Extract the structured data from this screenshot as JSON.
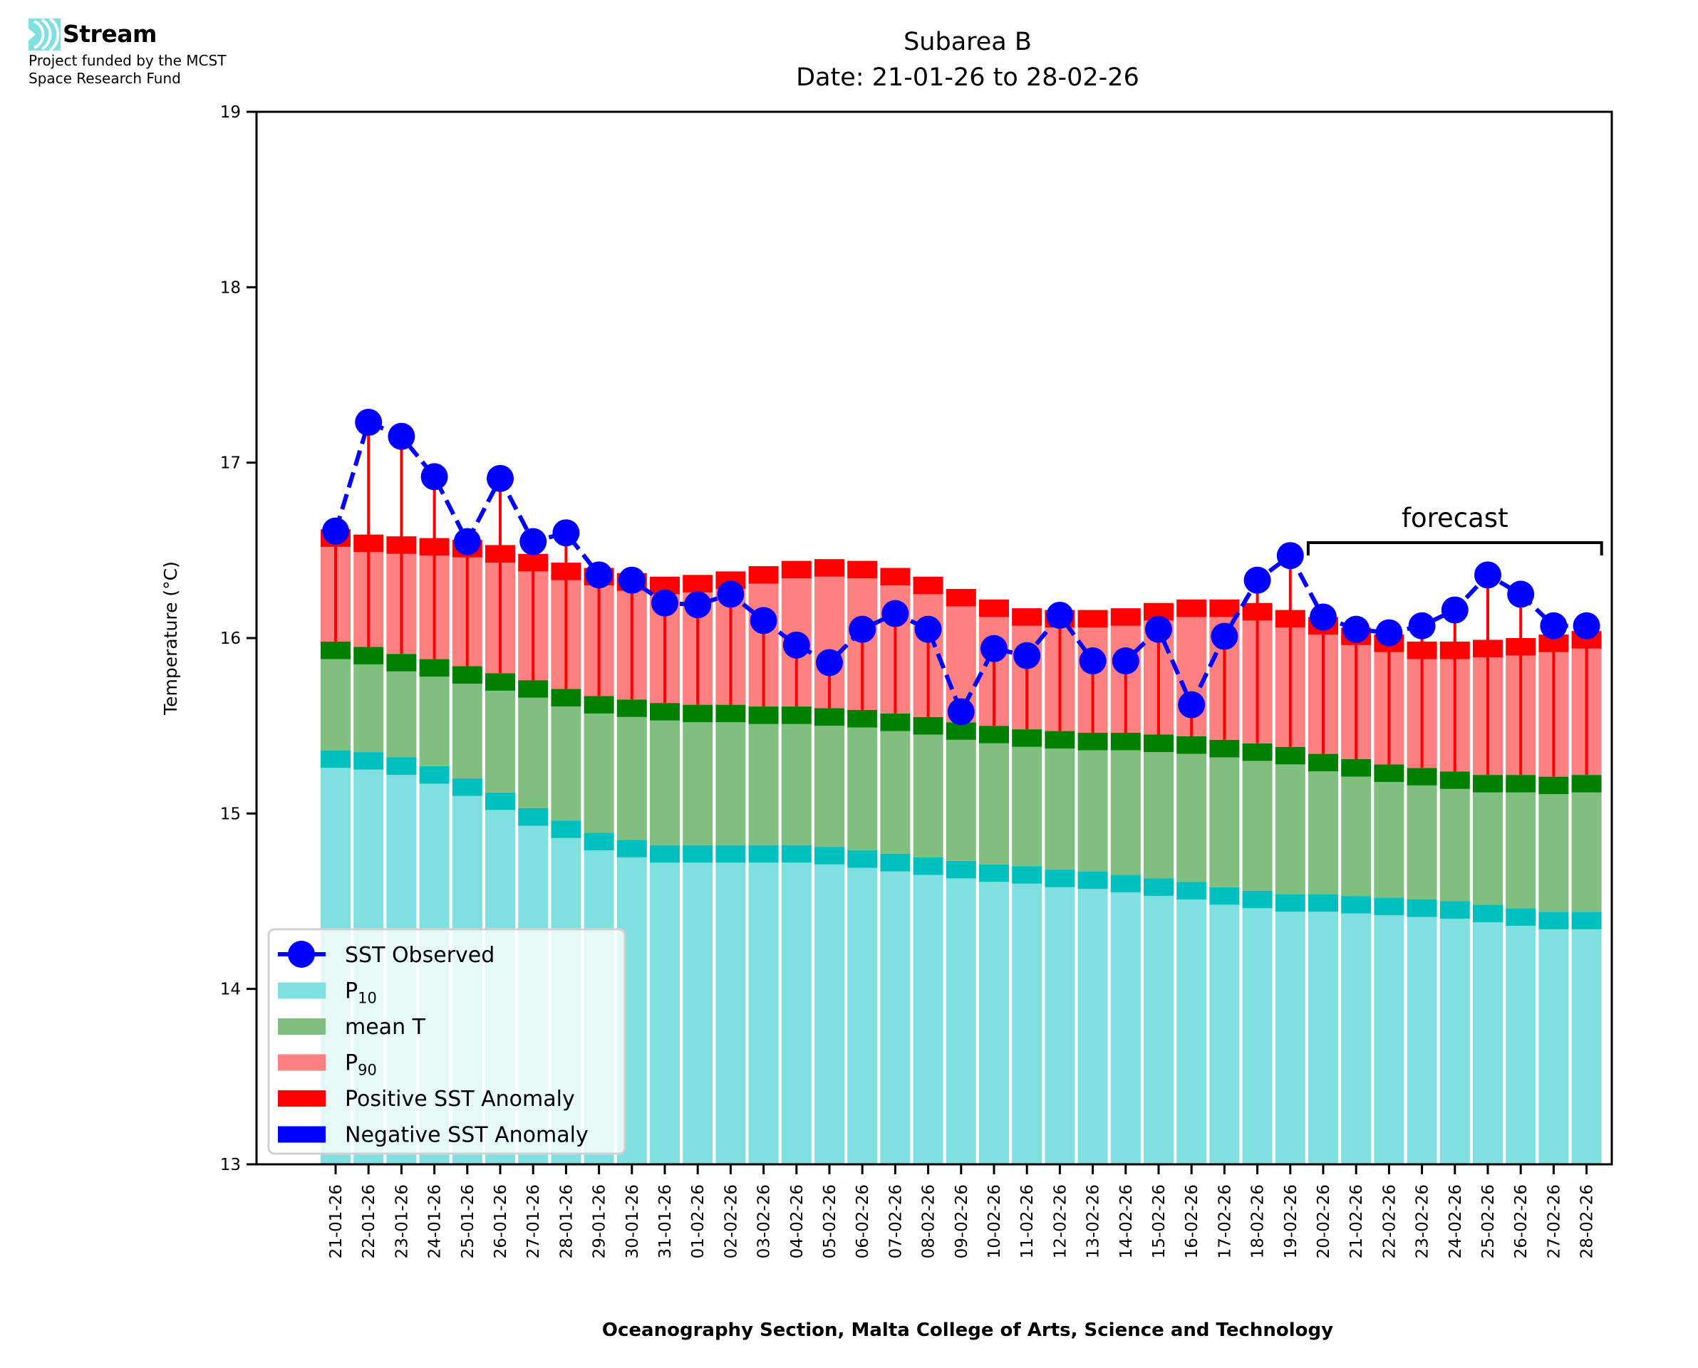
{
  "logo": {
    "name": "Stream",
    "subtitle_line1": "Project funded by the MCST",
    "subtitle_line2": "Space Research Fund",
    "icon": "stream-waves-icon"
  },
  "colors": {
    "p10": "#80dfdf",
    "p10_band": "#00bfbf",
    "mean": "#80bf80",
    "mean_band": "#008000",
    "p90": "#ff8080",
    "p90_band": "#ff0000",
    "positive_anomaly": "#ff0000",
    "negative_anomaly": "#0000ff",
    "observed": "#0000ff"
  },
  "chart_data": {
    "type": "bar",
    "title": "Subarea B",
    "subtitle": "Date: 21-01-26 to 28-02-26",
    "xlabel": "Oceanography Section, Malta College of Arts, Science and Technology",
    "ylabel": "Temperature (°C)",
    "ylim": [
      13,
      19
    ],
    "yticks": [
      13,
      14,
      15,
      16,
      17,
      18,
      19
    ],
    "grid": false,
    "legend_position": "lower-left",
    "categories": [
      "21-01-26",
      "22-01-26",
      "23-01-26",
      "24-01-26",
      "25-01-26",
      "26-01-26",
      "27-01-26",
      "28-01-26",
      "29-01-26",
      "30-01-26",
      "31-01-26",
      "01-02-26",
      "02-02-26",
      "03-02-26",
      "04-02-26",
      "05-02-26",
      "06-02-26",
      "07-02-26",
      "08-02-26",
      "09-02-26",
      "10-02-26",
      "11-02-26",
      "12-02-26",
      "13-02-26",
      "14-02-26",
      "15-02-26",
      "16-02-26",
      "17-02-26",
      "18-02-26",
      "19-02-26",
      "20-02-26",
      "21-02-26",
      "22-02-26",
      "23-02-26",
      "24-02-26",
      "25-02-26",
      "26-02-26",
      "27-02-26",
      "28-02-26"
    ],
    "series": [
      {
        "name": "P10",
        "values": [
          15.36,
          15.35,
          15.32,
          15.27,
          15.2,
          15.12,
          15.03,
          14.96,
          14.89,
          14.85,
          14.82,
          14.82,
          14.82,
          14.82,
          14.82,
          14.81,
          14.79,
          14.77,
          14.75,
          14.73,
          14.71,
          14.7,
          14.68,
          14.67,
          14.65,
          14.63,
          14.61,
          14.58,
          14.56,
          14.54,
          14.54,
          14.53,
          14.52,
          14.51,
          14.5,
          14.48,
          14.46,
          14.44,
          14.44
        ]
      },
      {
        "name": "mean T",
        "values": [
          15.98,
          15.95,
          15.91,
          15.88,
          15.84,
          15.8,
          15.76,
          15.71,
          15.67,
          15.65,
          15.63,
          15.62,
          15.62,
          15.61,
          15.61,
          15.6,
          15.59,
          15.57,
          15.55,
          15.52,
          15.5,
          15.48,
          15.47,
          15.46,
          15.46,
          15.45,
          15.44,
          15.42,
          15.4,
          15.38,
          15.34,
          15.31,
          15.28,
          15.26,
          15.24,
          15.22,
          15.22,
          15.21,
          15.22
        ]
      },
      {
        "name": "P90",
        "values": [
          16.62,
          16.59,
          16.58,
          16.57,
          16.56,
          16.53,
          16.48,
          16.43,
          16.4,
          16.37,
          16.35,
          16.36,
          16.38,
          16.41,
          16.44,
          16.45,
          16.44,
          16.4,
          16.35,
          16.28,
          16.22,
          16.17,
          16.16,
          16.16,
          16.17,
          16.2,
          16.22,
          16.22,
          16.2,
          16.16,
          16.12,
          16.06,
          16.02,
          15.98,
          15.98,
          15.99,
          16.0,
          16.02,
          16.04
        ]
      },
      {
        "name": "SST Observed",
        "values": [
          16.61,
          17.23,
          17.15,
          16.92,
          16.55,
          16.91,
          16.55,
          16.6,
          16.36,
          16.33,
          16.2,
          16.19,
          16.25,
          16.1,
          15.96,
          15.86,
          16.05,
          16.14,
          16.05,
          15.58,
          15.94,
          15.9,
          16.13,
          15.87,
          15.87,
          16.05,
          15.62,
          16.01,
          16.33,
          16.47,
          16.12,
          16.05,
          16.03,
          16.07,
          16.16,
          16.36,
          16.25,
          16.07,
          16.07
        ]
      }
    ],
    "band_thickness": 0.1,
    "annotation": {
      "text": "forecast",
      "start_category": "20-02-26",
      "end_category": "28-02-26"
    },
    "legend": [
      {
        "label": "SST Observed",
        "kind": "line-marker",
        "color_key": "observed"
      },
      {
        "label": "P",
        "sub": "10",
        "kind": "patch",
        "color_key": "p10"
      },
      {
        "label": "mean T",
        "sub": "",
        "kind": "patch",
        "color_key": "mean"
      },
      {
        "label": "P",
        "sub": "90",
        "kind": "patch",
        "color_key": "p90"
      },
      {
        "label": "Positive SST Anomaly",
        "kind": "patch",
        "color_key": "positive_anomaly"
      },
      {
        "label": "Negative SST Anomaly",
        "kind": "patch",
        "color_key": "negative_anomaly"
      }
    ]
  }
}
